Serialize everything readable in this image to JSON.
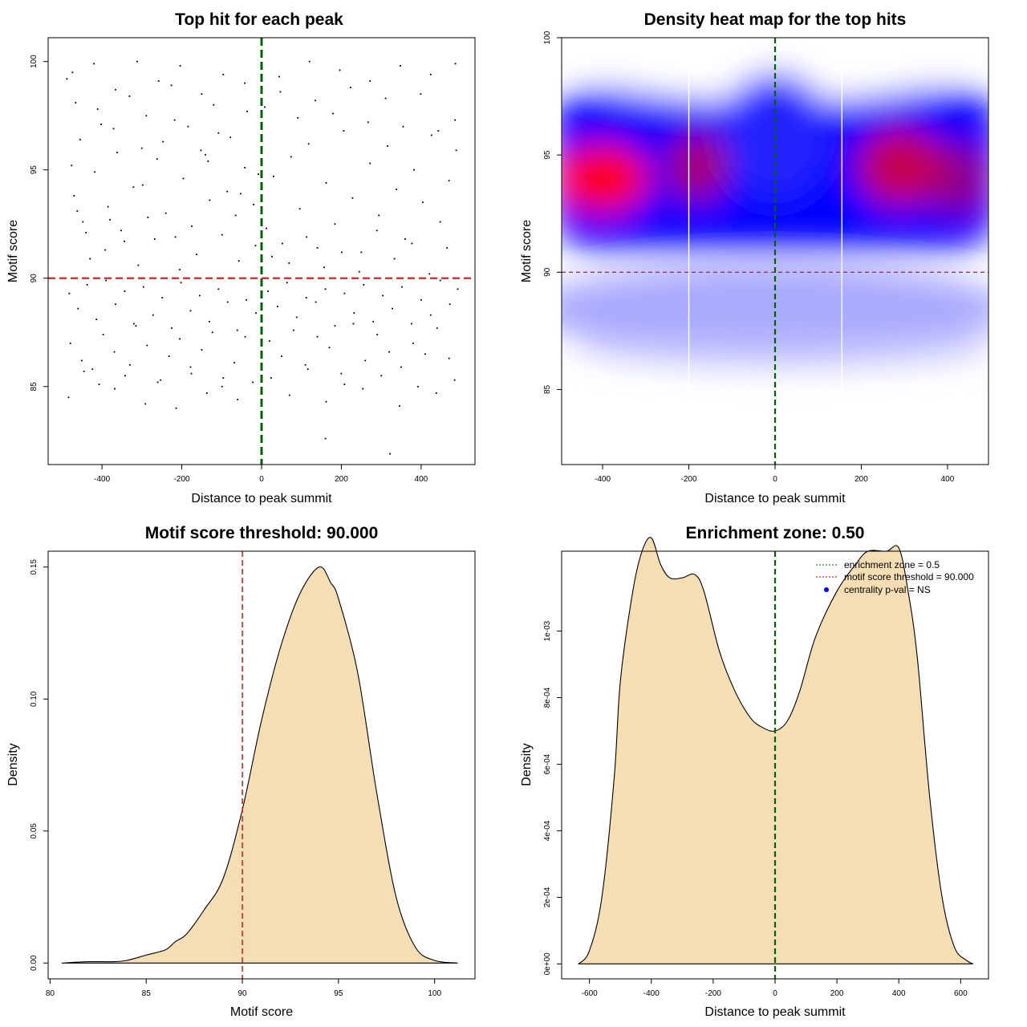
{
  "chart_data": [
    {
      "type": "scatter",
      "title": "Top hit for each peak",
      "xlabel": "Distance to peak summit",
      "ylabel": "Motif score",
      "xlim": [
        -535,
        535
      ],
      "ylim": [
        81.4,
        101.1
      ],
      "xticks": [
        -400,
        -200,
        0,
        200,
        400
      ],
      "xtick_labels": [
        "-400",
        "-200",
        "0",
        "200",
        "400"
      ],
      "yticks": [
        85,
        90,
        95,
        100
      ],
      "ytick_labels": [
        "85",
        "90",
        "95",
        "100"
      ],
      "vline": 0,
      "hline": 90,
      "grid": false,
      "point_color": "#000000",
      "line_colors": {
        "vertical": "#006400",
        "horizontal": "#cd2626"
      },
      "series": [
        {
          "points_note_free": true,
          "x": [
            -476,
            -470,
            -455,
            -440,
            -418,
            -402,
            -385,
            -362,
            -344,
            -321,
            -300,
            -285,
            -262,
            -240,
            -218,
            -196,
            -175,
            -152,
            -130,
            -108,
            -86,
            -65,
            -42,
            -20,
            -8,
            -488,
            -466,
            -448,
            -430,
            -411,
            -392,
            -371,
            -352,
            -331,
            -309,
            -289,
            -268,
            -247,
            -226,
            -205,
            -184,
            -163,
            -141,
            -120,
            -99,
            -78,
            -57,
            -36,
            -15,
            -482,
            -460,
            -437,
            -414,
            -390,
            -366,
            -343,
            -320,
            -296,
            -272,
            -249,
            -225,
            -202,
            -178,
            -155,
            -131,
            -108,
            -85,
            -61,
            -38,
            -14,
            -479,
            -451,
            -424,
            -397,
            -369,
            -342,
            -315,
            -287,
            -260,
            -232,
            -205,
            -178,
            -150,
            -123,
            -96,
            -68,
            -41,
            -484,
            -445,
            -407,
            -368,
            -330,
            -291,
            -253,
            -214,
            -176,
            -137,
            -99,
            -60,
            -22,
            -474,
            -420,
            -366,
            -312,
            -258,
            -204,
            -150,
            -96,
            -42,
            -462,
            -380,
            -298,
            -216,
            -134,
            -52,
            12,
            30,
            52,
            74,
            96,
            118,
            140,
            162,
            184,
            206,
            228,
            250,
            272,
            294,
            316,
            338,
            360,
            382,
            404,
            426,
            448,
            470,
            488,
            8,
            26,
            47,
            69,
            91,
            113,
            135,
            157,
            179,
            201,
            223,
            245,
            267,
            289,
            311,
            333,
            355,
            377,
            399,
            421,
            443,
            465,
            485,
            16,
            40,
            64,
            88,
            112,
            136,
            160,
            184,
            208,
            232,
            256,
            280,
            304,
            328,
            352,
            376,
            400,
            424,
            448,
            472,
            492,
            20,
            50,
            80,
            110,
            140,
            170,
            200,
            230,
            260,
            290,
            320,
            350,
            380,
            410,
            440,
            470,
            24,
            70,
            116,
            162,
            208,
            254,
            300,
            346,
            392,
            438,
            484,
            44,
            120,
            196,
            272,
            348,
            424,
            486,
            160,
            322
          ],
          "y": [
            95.2,
            93.8,
            96.4,
            92.1,
            94.9,
            97.1,
            93.3,
            95.8,
            91.7,
            94.2,
            96.0,
            92.8,
            95.5,
            93.0,
            97.3,
            94.6,
            92.4,
            95.9,
            93.6,
            96.7,
            94.0,
            92.9,
            95.1,
            93.4,
            94.8,
            99.2,
            98.1,
            92.6,
            90.9,
            97.8,
            91.3,
            96.9,
            92.2,
            98.4,
            90.6,
            97.5,
            91.8,
            96.3,
            98.9,
            90.4,
            97.0,
            91.1,
            95.7,
            98.0,
            92.0,
            96.5,
            90.8,
            97.7,
            91.5,
            89.3,
            88.6,
            89.7,
            88.1,
            89.9,
            88.8,
            89.4,
            87.9,
            89.6,
            88.3,
            89.1,
            87.7,
            89.8,
            88.5,
            89.2,
            88.0,
            89.5,
            88.9,
            87.6,
            89.0,
            88.4,
            87.0,
            86.2,
            85.8,
            87.4,
            86.6,
            85.5,
            87.8,
            86.9,
            85.2,
            86.4,
            87.2,
            85.9,
            86.7,
            87.5,
            85.4,
            86.1,
            87.3,
            84.5,
            85.7,
            85.1,
            84.9,
            86.0,
            84.2,
            85.3,
            84.0,
            85.6,
            84.7,
            85.0,
            84.4,
            85.2,
            99.5,
            99.9,
            98.7,
            100.0,
            99.1,
            99.8,
            98.5,
            99.4,
            99.0,
            93.1,
            92.7,
            94.3,
            91.9,
            95.4,
            93.9,
            92.3,
            94.7,
            91.6,
            95.6,
            93.2,
            96.2,
            91.4,
            94.4,
            92.5,
            96.8,
            93.7,
            91.2,
            95.3,
            92.9,
            96.1,
            94.1,
            91.8,
            95.0,
            93.5,
            96.6,
            92.6,
            94.5,
            95.9,
            97.9,
            91.0,
            98.6,
            90.7,
            97.4,
            91.9,
            98.2,
            90.5,
            97.6,
            91.2,
            98.8,
            90.3,
            97.2,
            92.2,
            98.3,
            90.9,
            97.0,
            91.6,
            98.5,
            90.2,
            96.8,
            91.4,
            97.3,
            89.4,
            88.7,
            89.8,
            88.2,
            89.1,
            88.9,
            89.5,
            87.8,
            89.3,
            88.4,
            89.7,
            88.0,
            89.2,
            88.6,
            89.6,
            87.9,
            89.0,
            88.3,
            89.9,
            88.8,
            89.5,
            87.1,
            86.4,
            87.6,
            86.0,
            87.3,
            86.8,
            85.6,
            87.9,
            86.2,
            87.4,
            86.6,
            85.9,
            87.0,
            86.5,
            87.7,
            86.3,
            85.4,
            84.6,
            85.8,
            84.3,
            85.1,
            84.9,
            85.5,
            84.1,
            85.0,
            84.7,
            85.3,
            99.3,
            100.0,
            99.6,
            99.1,
            99.8,
            99.4,
            99.9,
            82.6,
            81.9
          ]
        }
      ]
    },
    {
      "type": "heatmap",
      "title": "Density heat map for the top hits",
      "xlabel": "Distance to peak summit",
      "ylabel": "Motif score",
      "xlim": [
        -495,
        495
      ],
      "ylim": [
        81.8,
        100
      ],
      "xticks": [
        -400,
        -200,
        0,
        200,
        400
      ],
      "xtick_labels": [
        "-400",
        "-200",
        "0",
        "200",
        "400"
      ],
      "yticks": [
        85,
        90,
        95,
        100
      ],
      "ytick_labels": [
        "85",
        "90",
        "95",
        "100"
      ],
      "vline": 0,
      "hline": 90,
      "white_vlines": [
        -200,
        155
      ],
      "colorscale": [
        "#ffffff",
        "#0000ff",
        "#ff0000"
      ],
      "density_peaks": [
        {
          "x": -400,
          "y": 94,
          "level": 1.0
        },
        {
          "x": -180,
          "y": 94.5,
          "level": 0.75
        },
        {
          "x": 290,
          "y": 94.5,
          "level": 0.85
        },
        {
          "x": 420,
          "y": 94,
          "level": 0.7
        }
      ]
    },
    {
      "type": "area",
      "title": "Motif score threshold: 90.000",
      "xlabel": "Motif score",
      "ylabel": "Density",
      "xlim": [
        79.9,
        102.1
      ],
      "ylim": [
        -0.006,
        0.156
      ],
      "xticks": [
        80,
        85,
        90,
        95,
        100
      ],
      "xtick_labels": [
        "80",
        "85",
        "90",
        "95",
        "100"
      ],
      "yticks": [
        0.0,
        0.05,
        0.1,
        0.15
      ],
      "ytick_labels": [
        "0.00",
        "0.05",
        "0.10",
        "0.15"
      ],
      "vline": 90,
      "fill_color": "#f5deb3",
      "x": [
        80.6,
        82,
        83.3,
        84,
        85,
        86,
        86.5,
        87.1,
        88,
        89,
        90,
        91,
        92,
        93,
        94,
        94.6,
        95,
        96,
        97,
        98,
        99,
        100,
        101.2
      ],
      "y": [
        0.0,
        0.0005,
        0.0005,
        0.001,
        0.003,
        0.005,
        0.008,
        0.011,
        0.02,
        0.032,
        0.058,
        0.092,
        0.12,
        0.14,
        0.15,
        0.144,
        0.138,
        0.11,
        0.064,
        0.025,
        0.006,
        0.001,
        0.0
      ]
    },
    {
      "type": "area",
      "title": "Enrichment zone: 0.50",
      "xlabel": "Distance to peak summit",
      "ylabel": "Density",
      "xlim": [
        -690,
        690
      ],
      "ylim": [
        -4.5e-05,
        0.00124
      ],
      "xticks": [
        -600,
        -400,
        -200,
        0,
        200,
        400,
        600
      ],
      "xtick_labels": [
        "-600",
        "-400",
        "-200",
        "0",
        "200",
        "400",
        "600"
      ],
      "yticks": [
        0,
        0.0002,
        0.0004,
        0.0006,
        0.0008,
        0.001
      ],
      "ytick_labels": [
        "0e+00",
        "2e-04",
        "4e-04",
        "6e-04",
        "8e-04",
        "1e-03"
      ],
      "vline": 0,
      "fill_color": "#f5deb3",
      "x": [
        -635,
        -600,
        -560,
        -520,
        -500,
        -460,
        -430,
        -400,
        -370,
        -340,
        -300,
        -260,
        -230,
        -180,
        -130,
        -80,
        -40,
        0,
        40,
        80,
        130,
        200,
        260,
        300,
        360,
        400,
        430,
        460,
        500,
        540,
        580,
        620,
        640
      ],
      "y": [
        0.0,
        4e-05,
        0.0002,
        0.00056,
        0.00085,
        0.00112,
        0.00124,
        0.00128,
        0.0012,
        0.00116,
        0.00116,
        0.00117,
        0.00112,
        0.00094,
        0.00082,
        0.00074,
        0.00071,
        0.0007,
        0.00073,
        0.00082,
        0.00098,
        0.00112,
        0.0012,
        0.00124,
        0.00124,
        0.00125,
        0.00112,
        0.00092,
        0.0005,
        0.0002,
        5e-05,
        1e-05,
        0.0
      ],
      "legend": {
        "position": "top-right",
        "entries": [
          {
            "label": "enrichment zone = 0.5",
            "color": "#228b22",
            "kind": "dotted-line"
          },
          {
            "label": "motif score threshold = 90.000",
            "color": "#cd2626",
            "kind": "dotted-line"
          },
          {
            "label": "centrality p-val = NS",
            "color": "#0000ff",
            "kind": "point"
          }
        ]
      }
    }
  ]
}
